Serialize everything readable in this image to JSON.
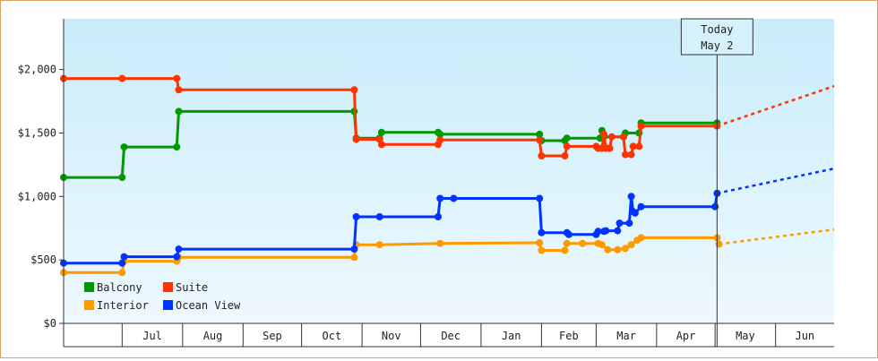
{
  "chart_data": {
    "type": "line",
    "title": "",
    "xlabel": "",
    "ylabel": "",
    "ylim": [
      0,
      2400
    ],
    "y_ticks": [
      {
        "value": 0,
        "label": "$0"
      },
      {
        "value": 500,
        "label": "$500"
      },
      {
        "value": 1000,
        "label": "$1,000"
      },
      {
        "value": 1500,
        "label": "$1,500"
      },
      {
        "value": 2000,
        "label": "$2,000"
      }
    ],
    "x_range": [
      "2014-06-01",
      "2015-07-01"
    ],
    "months": [
      {
        "label": "Jul",
        "start": "2014-07-01"
      },
      {
        "label": "Aug",
        "start": "2014-08-01"
      },
      {
        "label": "Sep",
        "start": "2014-09-01"
      },
      {
        "label": "Oct",
        "start": "2014-10-01"
      },
      {
        "label": "Nov",
        "start": "2014-11-01"
      },
      {
        "label": "Dec",
        "start": "2014-12-01"
      },
      {
        "label": "Jan",
        "start": "2015-01-01"
      },
      {
        "label": "Feb",
        "start": "2015-02-01"
      },
      {
        "label": "Mar",
        "start": "2015-03-01"
      },
      {
        "label": "Apr",
        "start": "2015-04-01"
      },
      {
        "label": "May",
        "start": "2015-05-01"
      },
      {
        "label": "Jun",
        "start": "2015-06-01"
      }
    ],
    "today": {
      "label_line1": "Today",
      "label_line2": "May 2",
      "date": "2015-05-02"
    },
    "legend": {
      "placement": "bottom-left"
    },
    "series": [
      {
        "name": "Balcony",
        "color": "#009900",
        "points": [
          [
            "2014-06-01",
            1150
          ],
          [
            "2014-07-01",
            1150
          ],
          [
            "2014-07-02",
            1390
          ],
          [
            "2014-07-29",
            1390
          ],
          [
            "2014-07-30",
            1670
          ],
          [
            "2014-10-28",
            1670
          ],
          [
            "2014-10-29",
            1460
          ],
          [
            "2014-11-10",
            1460
          ],
          [
            "2014-11-11",
            1505
          ],
          [
            "2014-12-10",
            1505
          ],
          [
            "2014-12-11",
            1490
          ],
          [
            "2015-01-31",
            1490
          ],
          [
            "2015-02-01",
            1440
          ],
          [
            "2015-02-13",
            1440
          ],
          [
            "2015-02-14",
            1460
          ],
          [
            "2015-03-03",
            1460
          ],
          [
            "2015-03-04",
            1520
          ],
          [
            "2015-03-05",
            1470
          ],
          [
            "2015-03-15",
            1470
          ],
          [
            "2015-03-16",
            1500
          ],
          [
            "2015-03-23",
            1500
          ],
          [
            "2015-03-24",
            1580
          ],
          [
            "2015-05-02",
            1580
          ]
        ],
        "forecast": []
      },
      {
        "name": "Suite",
        "color": "#ff3300",
        "points": [
          [
            "2014-06-01",
            1930
          ],
          [
            "2014-07-01",
            1930
          ],
          [
            "2014-07-29",
            1930
          ],
          [
            "2014-07-30",
            1840
          ],
          [
            "2014-10-28",
            1840
          ],
          [
            "2014-10-29",
            1450
          ],
          [
            "2014-11-10",
            1450
          ],
          [
            "2014-11-11",
            1410
          ],
          [
            "2014-12-10",
            1410
          ],
          [
            "2014-12-11",
            1445
          ],
          [
            "2015-01-31",
            1445
          ],
          [
            "2015-02-01",
            1320
          ],
          [
            "2015-02-13",
            1320
          ],
          [
            "2015-02-14",
            1395
          ],
          [
            "2015-03-01",
            1395
          ],
          [
            "2015-03-02",
            1380
          ],
          [
            "2015-03-04",
            1380
          ],
          [
            "2015-03-05",
            1490
          ],
          [
            "2015-03-06",
            1380
          ],
          [
            "2015-03-08",
            1380
          ],
          [
            "2015-03-09",
            1470
          ],
          [
            "2015-03-15",
            1470
          ],
          [
            "2015-03-16",
            1330
          ],
          [
            "2015-03-19",
            1330
          ],
          [
            "2015-03-20",
            1395
          ],
          [
            "2015-03-23",
            1395
          ],
          [
            "2015-03-24",
            1555
          ],
          [
            "2015-05-02",
            1555
          ]
        ],
        "forecast": [
          [
            "2015-05-02",
            1555
          ],
          [
            "2015-07-01",
            1870
          ]
        ]
      },
      {
        "name": "Interior",
        "color": "#ff9900",
        "points": [
          [
            "2014-06-01",
            400
          ],
          [
            "2014-07-01",
            400
          ],
          [
            "2014-07-02",
            490
          ],
          [
            "2014-07-29",
            490
          ],
          [
            "2014-07-30",
            520
          ],
          [
            "2014-10-28",
            520
          ],
          [
            "2014-10-29",
            620
          ],
          [
            "2014-11-10",
            620
          ],
          [
            "2014-12-11",
            630
          ],
          [
            "2015-01-31",
            635
          ],
          [
            "2015-02-01",
            575
          ],
          [
            "2015-02-13",
            575
          ],
          [
            "2015-02-14",
            630
          ],
          [
            "2015-02-22",
            630
          ],
          [
            "2015-03-02",
            630
          ],
          [
            "2015-03-04",
            620
          ],
          [
            "2015-03-07",
            580
          ],
          [
            "2015-03-12",
            580
          ],
          [
            "2015-03-16",
            590
          ],
          [
            "2015-03-19",
            620
          ],
          [
            "2015-03-22",
            655
          ],
          [
            "2015-03-24",
            675
          ],
          [
            "2015-05-02",
            675
          ],
          [
            "2015-05-03",
            625
          ]
        ],
        "forecast": [
          [
            "2015-05-03",
            625
          ],
          [
            "2015-07-01",
            740
          ]
        ]
      },
      {
        "name": "Ocean View",
        "color": "#0033ff",
        "points": [
          [
            "2014-06-01",
            475
          ],
          [
            "2014-07-01",
            475
          ],
          [
            "2014-07-02",
            525
          ],
          [
            "2014-07-29",
            525
          ],
          [
            "2014-07-30",
            585
          ],
          [
            "2014-10-28",
            585
          ],
          [
            "2014-10-29",
            840
          ],
          [
            "2014-11-10",
            840
          ],
          [
            "2014-12-10",
            840
          ],
          [
            "2014-12-11",
            985
          ],
          [
            "2014-12-18",
            985
          ],
          [
            "2015-01-31",
            985
          ],
          [
            "2015-02-01",
            715
          ],
          [
            "2015-02-14",
            715
          ],
          [
            "2015-02-15",
            700
          ],
          [
            "2015-03-01",
            700
          ],
          [
            "2015-03-02",
            725
          ],
          [
            "2015-03-05",
            725
          ],
          [
            "2015-03-06",
            730
          ],
          [
            "2015-03-12",
            730
          ],
          [
            "2015-03-13",
            790
          ],
          [
            "2015-03-18",
            790
          ],
          [
            "2015-03-19",
            1000
          ],
          [
            "2015-03-20",
            880
          ],
          [
            "2015-03-21",
            870
          ],
          [
            "2015-03-24",
            920
          ],
          [
            "2015-05-01",
            920
          ],
          [
            "2015-05-02",
            1025
          ]
        ],
        "forecast": [
          [
            "2015-05-02",
            1025
          ],
          [
            "2015-07-01",
            1220
          ]
        ]
      }
    ]
  }
}
